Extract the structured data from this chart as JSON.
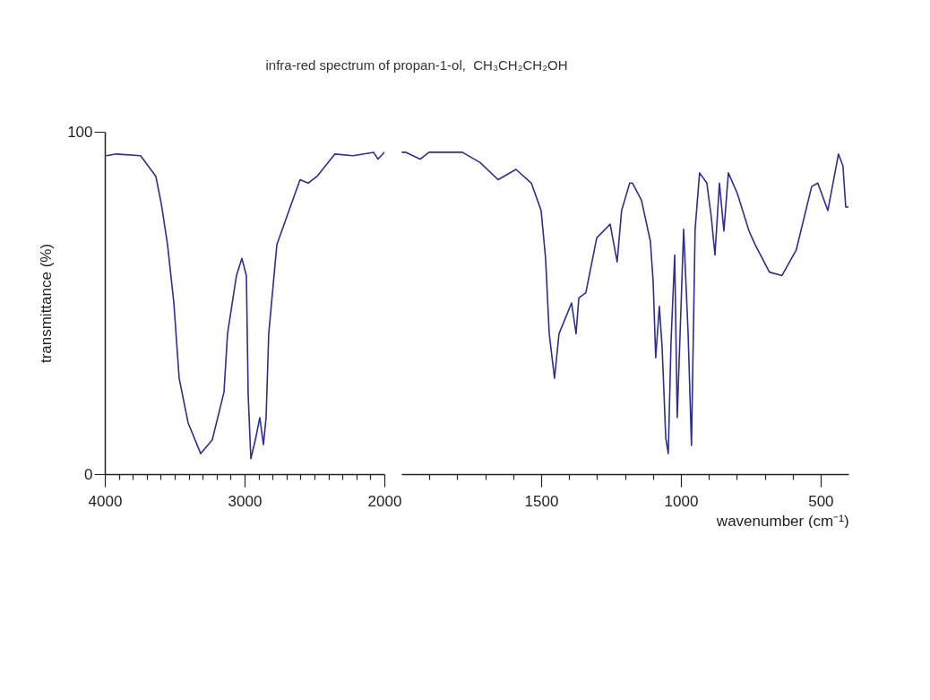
{
  "chart_data": [
    {
      "type": "line",
      "title": "infra-red spectrum of propan-1-ol,  CH₃CH₂CH₂OH",
      "ylabel": "transmittance (%)",
      "xlim": [
        4000,
        2000
      ],
      "ylim": [
        0,
        100
      ],
      "xticks": [
        4000,
        {
          "value": 3900,
          "label": null
        },
        {
          "value": 3800,
          "label": null
        },
        {
          "value": 3700,
          "label": null
        },
        {
          "value": 3600,
          "label": null
        },
        {
          "value": 3500,
          "label": null
        },
        {
          "value": 3400,
          "label": null
        },
        {
          "value": 3300,
          "label": null
        },
        {
          "value": 3200,
          "label": null
        },
        {
          "value": 3100,
          "label": null
        },
        3000,
        {
          "value": 2900,
          "label": null
        },
        {
          "value": 2800,
          "label": null
        },
        {
          "value": 2700,
          "label": null
        },
        {
          "value": 2600,
          "label": null
        },
        {
          "value": 2500,
          "label": null
        },
        {
          "value": 2400,
          "label": null
        },
        {
          "value": 2300,
          "label": null
        },
        {
          "value": 2200,
          "label": null
        },
        {
          "value": 2100,
          "label": null
        },
        2000
      ],
      "yticks": [
        0,
        100
      ],
      "grid": false,
      "marker": "none",
      "line_style": "solid",
      "series": [
        {
          "color": "#2e2e8f",
          "x": [
            3987,
            3917,
            3744,
            3635,
            3596,
            3551,
            3506,
            3468,
            3404,
            3314,
            3231,
            3147,
            3122,
            3058,
            3019,
            2987,
            2974,
            2955,
            2923,
            2891,
            2865,
            2846,
            2827,
            2769,
            2673,
            2603,
            2545,
            2481,
            2353,
            2224,
            2077,
            2045,
            2000
          ],
          "values": [
            93,
            93.5,
            93,
            87,
            79,
            67,
            50,
            28,
            15,
            6,
            10,
            24,
            41,
            58,
            63,
            58,
            23,
            4.5,
            10,
            16.5,
            8.6,
            16.5,
            41,
            67,
            78,
            86,
            85,
            87,
            93.5,
            93,
            94,
            92,
            94
          ]
        }
      ]
    },
    {
      "type": "line",
      "xlabel": "wavenumber (cm⁻¹)",
      "xlim": [
        2000,
        400
      ],
      "ylim": [
        0,
        100
      ],
      "tick_labels": "x",
      "xticks": [
        {
          "value": 1900,
          "label": null
        },
        {
          "value": 1800,
          "label": null
        },
        {
          "value": 1700,
          "label": null
        },
        {
          "value": 1600,
          "label": null
        },
        1500,
        {
          "value": 1400,
          "label": null
        },
        {
          "value": 1300,
          "label": null
        },
        {
          "value": 1200,
          "label": null
        },
        {
          "value": 1100,
          "label": null
        },
        1000,
        {
          "value": 900,
          "label": null
        },
        {
          "value": 800,
          "label": null
        },
        {
          "value": 700,
          "label": null
        },
        {
          "value": 600,
          "label": null
        },
        500
      ],
      "grid": false,
      "marker": "none",
      "line_style": "solid",
      "series": [
        {
          "color": "#2e2e8f",
          "x": [
            1997,
            1984,
            1933,
            1901,
            1782,
            1718,
            1654,
            1590,
            1535,
            1500,
            1484,
            1471,
            1452,
            1436,
            1391,
            1375,
            1365,
            1340,
            1301,
            1253,
            1228,
            1212,
            1183,
            1173,
            1141,
            1109,
            1099,
            1090,
            1077,
            1067,
            1054,
            1045,
            1035,
            1022,
            1013,
            990,
            974,
            962,
            949,
            933,
            907,
            891,
            878,
            862,
            846,
            830,
            798,
            756,
            734,
            683,
            638,
            587,
            532,
            510,
            474,
            436,
            420,
            410,
            400
          ],
          "values": [
            94,
            94,
            92,
            94,
            94,
            91,
            86,
            89,
            85,
            77,
            63,
            41,
            28,
            41,
            50,
            41,
            51.5,
            53,
            69,
            73,
            62,
            77,
            85,
            85,
            80,
            68,
            56,
            34,
            49,
            37,
            10.5,
            6,
            39,
            64,
            16.5,
            71.5,
            41,
            8.4,
            71.5,
            88,
            85,
            75,
            64,
            85,
            71,
            88,
            82,
            71,
            67,
            59,
            58,
            65.5,
            84,
            85,
            77,
            93.5,
            90,
            78,
            78
          ]
        }
      ]
    }
  ]
}
